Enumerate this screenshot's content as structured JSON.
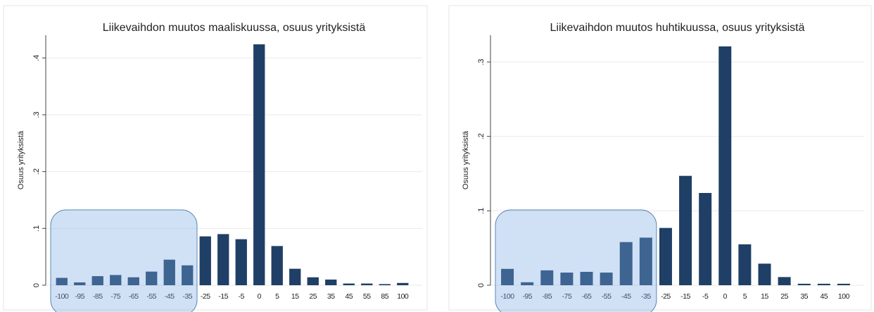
{
  "chart_data": [
    {
      "type": "bar",
      "title": "Liikevaihdon muutos maaliskuussa, osuus yrityksistä",
      "y_label": "Osuus yrityksistä",
      "categories": [
        "-100",
        "-95",
        "-85",
        "-75",
        "-65",
        "-55",
        "-45",
        "-35",
        "-25",
        "-15",
        "-5",
        "0",
        "5",
        "15",
        "25",
        "35",
        "45",
        "55",
        "85",
        "100"
      ],
      "values": [
        0.013,
        0.005,
        0.016,
        0.018,
        0.014,
        0.024,
        0.045,
        0.035,
        0.086,
        0.09,
        0.081,
        0.424,
        0.069,
        0.029,
        0.014,
        0.01,
        0.003,
        0.003,
        0.002,
        0.004
      ],
      "color": "#1f3f66",
      "ylim": [
        0,
        0.44
      ],
      "yticks": [
        0,
        {
          "value": 0.1,
          "label": ".1"
        },
        {
          "value": 0.2,
          "label": ".2"
        },
        {
          "value": 0.3,
          "label": ".3"
        },
        {
          "value": 0.4,
          "label": ".4"
        }
      ],
      "grid": true
    },
    {
      "type": "bar",
      "title": "Liikevaihdon muutos huhtikuussa, osuus yrityksistä",
      "y_label": "Osuus yrityksistä",
      "categories": [
        "-100",
        "-95",
        "-85",
        "-75",
        "-65",
        "-55",
        "-45",
        "-35",
        "-25",
        "-15",
        "-5",
        "0",
        "5",
        "15",
        "25",
        "35",
        "45",
        "100"
      ],
      "values": [
        0.022,
        0.004,
        0.02,
        0.017,
        0.018,
        0.017,
        0.058,
        0.064,
        0.077,
        0.147,
        0.124,
        0.321,
        0.055,
        0.029,
        0.011,
        0.002,
        0.002,
        0.002
      ],
      "color": "#1f3f66",
      "ylim": [
        0,
        0.336
      ],
      "yticks": [
        0,
        {
          "value": 0.1,
          "label": ".1"
        },
        {
          "value": 0.2,
          "label": ".2"
        },
        {
          "value": 0.3,
          "label": ".3"
        }
      ],
      "grid": true
    }
  ]
}
